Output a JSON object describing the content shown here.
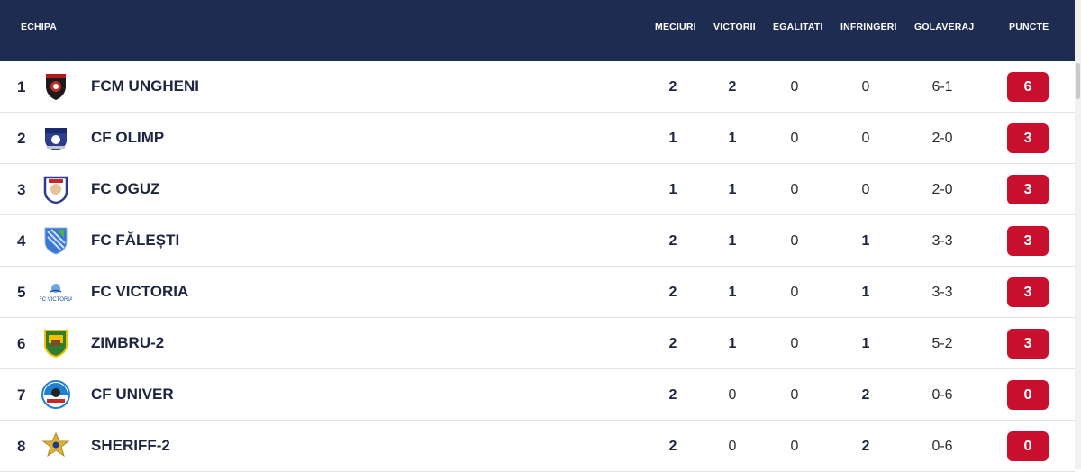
{
  "header": {
    "team": "ECHIPA",
    "played": "MECIURI",
    "wins": "VICTORII",
    "draws": "EGALITATI",
    "losses": "INFRINGERI",
    "goals": "GOLAVERAJ",
    "points": "PUNCTE"
  },
  "colors": {
    "header_bg": "#1f2c52",
    "points_badge": "#c8102e"
  },
  "rows": [
    {
      "pos": "1",
      "team": "FCM UNGHENI",
      "played": "2",
      "wins": "2",
      "draws": "0",
      "losses": "0",
      "goals": "6-1",
      "points": "6",
      "logo": "fcm-ungheni-crest"
    },
    {
      "pos": "2",
      "team": "CF OLIMP",
      "played": "1",
      "wins": "1",
      "draws": "0",
      "losses": "0",
      "goals": "2-0",
      "points": "3",
      "logo": "cf-olimp-crest"
    },
    {
      "pos": "3",
      "team": "FC OGUZ",
      "played": "1",
      "wins": "1",
      "draws": "0",
      "losses": "0",
      "goals": "2-0",
      "points": "3",
      "logo": "fc-oguz-crest"
    },
    {
      "pos": "4",
      "team": "FC FĂLEȘTI",
      "played": "2",
      "wins": "1",
      "draws": "0",
      "losses": "1",
      "goals": "3-3",
      "points": "3",
      "logo": "fc-falesti-crest"
    },
    {
      "pos": "5",
      "team": "FC VICTORIA",
      "played": "2",
      "wins": "1",
      "draws": "0",
      "losses": "1",
      "goals": "3-3",
      "points": "3",
      "logo": "fc-victoria-crest"
    },
    {
      "pos": "6",
      "team": "ZIMBRU-2",
      "played": "2",
      "wins": "1",
      "draws": "0",
      "losses": "1",
      "goals": "5-2",
      "points": "3",
      "logo": "zimbru-crest"
    },
    {
      "pos": "7",
      "team": "CF UNIVER",
      "played": "2",
      "wins": "0",
      "draws": "0",
      "losses": "2",
      "goals": "0-6",
      "points": "0",
      "logo": "cf-univer-crest"
    },
    {
      "pos": "8",
      "team": "SHERIFF-2",
      "played": "2",
      "wins": "0",
      "draws": "0",
      "losses": "2",
      "goals": "0-6",
      "points": "0",
      "logo": "sheriff-crest"
    }
  ]
}
